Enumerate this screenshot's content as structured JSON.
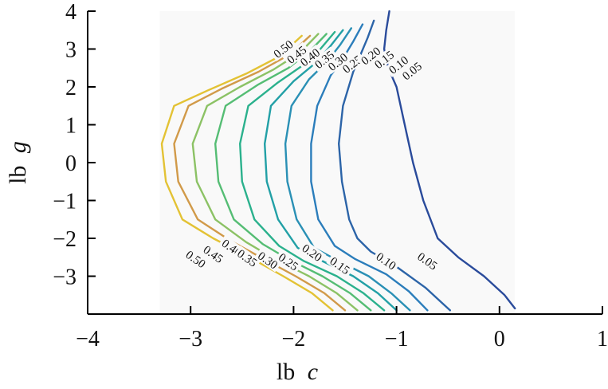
{
  "chart_data": {
    "type": "contour",
    "xlabel": {
      "prefix": "lb",
      "var": "c"
    },
    "ylabel": {
      "prefix": "lb",
      "var": "g"
    },
    "xlim": [
      -4,
      1
    ],
    "ylim": [
      -4,
      4
    ],
    "xticks": [
      -4,
      -3,
      -2,
      -1,
      0,
      1
    ],
    "yticks": [
      -3,
      -2,
      -1,
      0,
      1,
      2,
      3,
      4
    ],
    "xtick_labels": [
      "−4",
      "−3",
      "−2",
      "−1",
      "0",
      "1"
    ],
    "ytick_labels": [
      "−3",
      "−2",
      "−1",
      "0",
      "1",
      "2",
      "3",
      "4"
    ],
    "plot_region": {
      "x": [
        -3.3,
        0.15
      ],
      "y": [
        -4,
        4
      ]
    },
    "levels": [
      {
        "label": "0.05",
        "value": 0.05,
        "color": "#2a4b9b",
        "x": [
          -1.07,
          -1.1,
          -1.12,
          -1.08,
          -1.0,
          -0.92,
          -0.84,
          -0.74,
          -0.6,
          -0.4,
          -0.15,
          0.05,
          0.15
        ],
        "y": [
          4.0,
          3.5,
          3.0,
          2.5,
          2.0,
          1.0,
          0.0,
          -1.0,
          -2.0,
          -2.5,
          -3.0,
          -3.5,
          -3.85
        ]
      },
      {
        "label": "0.10",
        "value": 0.1,
        "color": "#2c64a8",
        "x": [
          -1.22,
          -1.28,
          -1.35,
          -1.42,
          -1.52,
          -1.56,
          -1.53,
          -1.46,
          -1.38,
          -1.25,
          -1.0,
          -0.72,
          -0.48
        ],
        "y": [
          3.75,
          3.3,
          2.85,
          2.4,
          1.5,
          0.5,
          -0.5,
          -1.5,
          -2.0,
          -2.35,
          -2.75,
          -3.3,
          -3.9
        ]
      },
      {
        "label": "0.15",
        "value": 0.15,
        "color": "#2b7dbb",
        "x": [
          -1.33,
          -1.42,
          -1.52,
          -1.64,
          -1.77,
          -1.83,
          -1.83,
          -1.76,
          -1.6,
          -1.4,
          -1.1,
          -0.88,
          -0.7
        ],
        "y": [
          3.65,
          3.2,
          2.75,
          2.3,
          1.5,
          0.5,
          -0.5,
          -1.5,
          -2.2,
          -2.55,
          -2.95,
          -3.4,
          -3.9
        ]
      },
      {
        "label": "0.20",
        "value": 0.2,
        "color": "#2a90b5",
        "x": [
          -1.44,
          -1.55,
          -1.68,
          -1.85,
          -2.02,
          -2.08,
          -2.06,
          -1.97,
          -1.8,
          -1.56,
          -1.27,
          -1.05,
          -0.87
        ],
        "y": [
          3.55,
          3.1,
          2.65,
          2.2,
          1.5,
          0.5,
          -0.5,
          -1.5,
          -2.25,
          -2.6,
          -3.0,
          -3.45,
          -3.9
        ]
      },
      {
        "label": "0.25",
        "value": 0.25,
        "color": "#22a0a6",
        "x": [
          -1.52,
          -1.65,
          -1.8,
          -2.0,
          -2.22,
          -2.28,
          -2.26,
          -2.15,
          -1.96,
          -1.72,
          -1.42,
          -1.18,
          -1.0
        ],
        "y": [
          3.5,
          3.05,
          2.6,
          2.15,
          1.5,
          0.5,
          -0.5,
          -1.5,
          -2.25,
          -2.6,
          -3.0,
          -3.45,
          -3.9
        ]
      },
      {
        "label": "0.30",
        "value": 0.3,
        "color": "#2bb18d",
        "x": [
          -1.6,
          -1.74,
          -1.92,
          -2.16,
          -2.44,
          -2.52,
          -2.5,
          -2.38,
          -2.14,
          -1.9,
          -1.58,
          -1.32,
          -1.12
        ],
        "y": [
          3.45,
          3.0,
          2.55,
          2.1,
          1.5,
          0.5,
          -0.5,
          -1.5,
          -2.2,
          -2.6,
          -3.0,
          -3.45,
          -3.9
        ]
      },
      {
        "label": "0.35",
        "value": 0.35,
        "color": "#55bd74",
        "x": [
          -1.68,
          -1.84,
          -2.05,
          -2.35,
          -2.66,
          -2.76,
          -2.73,
          -2.58,
          -2.3,
          -2.05,
          -1.72,
          -1.45,
          -1.25
        ],
        "y": [
          3.4,
          2.95,
          2.5,
          2.05,
          1.5,
          0.5,
          -0.5,
          -1.5,
          -2.15,
          -2.55,
          -3.0,
          -3.45,
          -3.9
        ]
      },
      {
        "label": "0.40",
        "value": 0.4,
        "color": "#8cc265",
        "x": [
          -1.76,
          -1.94,
          -2.2,
          -2.52,
          -2.84,
          -2.98,
          -2.94,
          -2.76,
          -2.46,
          -2.18,
          -1.85,
          -1.58,
          -1.38
        ],
        "y": [
          3.4,
          2.9,
          2.45,
          2.0,
          1.5,
          0.5,
          -0.5,
          -1.5,
          -2.1,
          -2.55,
          -3.0,
          -3.45,
          -3.9
        ]
      },
      {
        "label": "0.45",
        "value": 0.45,
        "color": "#d19a49",
        "x": [
          -1.84,
          -2.04,
          -2.34,
          -2.7,
          -3.02,
          -3.16,
          -3.12,
          -2.93,
          -2.62,
          -2.32,
          -1.98,
          -1.7,
          -1.5
        ],
        "y": [
          3.35,
          2.85,
          2.4,
          1.95,
          1.5,
          0.5,
          -0.5,
          -1.5,
          -2.05,
          -2.5,
          -3.0,
          -3.45,
          -3.9
        ]
      },
      {
        "label": "0.50",
        "value": 0.5,
        "color": "#e3c234",
        "x": [
          -1.92,
          -2.14,
          -2.46,
          -2.84,
          -3.16,
          -3.28,
          -3.24,
          -3.08,
          -2.78,
          -2.46,
          -2.1,
          -1.82,
          -1.62
        ],
        "y": [
          3.35,
          2.8,
          2.35,
          1.9,
          1.5,
          0.5,
          -0.5,
          -1.5,
          -2.0,
          -2.45,
          -3.0,
          -3.45,
          -3.9
        ]
      }
    ],
    "labels_top": [
      {
        "text": "0.50",
        "x": -2.1,
        "y": 3.0
      },
      {
        "text": "0.45",
        "x": -1.97,
        "y": 2.85
      },
      {
        "text": "0.40",
        "x": -1.84,
        "y": 2.78
      },
      {
        "text": "0.35",
        "x": -1.7,
        "y": 2.72
      },
      {
        "text": "0.30",
        "x": -1.57,
        "y": 2.66
      },
      {
        "text": "0.25",
        "x": -1.43,
        "y": 2.6
      },
      {
        "text": "0.20",
        "x": -1.25,
        "y": 2.82
      },
      {
        "text": "0.15",
        "x": -1.12,
        "y": 2.72
      },
      {
        "text": "0.10",
        "x": -0.98,
        "y": 2.58
      },
      {
        "text": "0.05",
        "x": -0.85,
        "y": 2.42
      }
    ],
    "labels_bottom": [
      {
        "text": "0.50",
        "x": -2.95,
        "y": -2.55
      },
      {
        "text": "0.45",
        "x": -2.78,
        "y": -2.42
      },
      {
        "text": "0.40",
        "x": -2.6,
        "y": -2.25
      },
      {
        "text": "0.35",
        "x": -2.45,
        "y": -2.52
      },
      {
        "text": "0.30",
        "x": -2.25,
        "y": -2.58
      },
      {
        "text": "0.25",
        "x": -2.05,
        "y": -2.62
      },
      {
        "text": "0.20",
        "x": -1.82,
        "y": -2.38
      },
      {
        "text": "0.15",
        "x": -1.55,
        "y": -2.72
      },
      {
        "text": "0.10",
        "x": -1.1,
        "y": -2.6
      },
      {
        "text": "0.05",
        "x": -0.7,
        "y": -2.6
      }
    ],
    "grid": false,
    "legend": "none"
  }
}
